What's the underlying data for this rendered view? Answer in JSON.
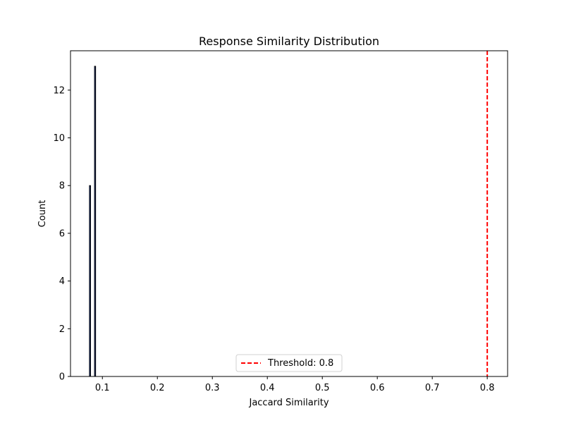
{
  "chart_data": {
    "type": "bar",
    "title": "Response Similarity Distribution",
    "xlabel": "Jaccard Similarity",
    "ylabel": "Count",
    "xlim": [
      0.042,
      0.837
    ],
    "ylim": [
      0,
      13.65
    ],
    "xticks": [
      {
        "value": 0.1,
        "label": "0.1"
      },
      {
        "value": 0.2,
        "label": "0.2"
      },
      {
        "value": 0.3,
        "label": "0.3"
      },
      {
        "value": 0.4,
        "label": "0.4"
      },
      {
        "value": 0.5,
        "label": "0.5"
      },
      {
        "value": 0.6,
        "label": "0.6"
      },
      {
        "value": 0.7,
        "label": "0.7"
      },
      {
        "value": 0.8,
        "label": "0.8"
      }
    ],
    "yticks": [
      {
        "value": 0,
        "label": "0"
      },
      {
        "value": 2,
        "label": "2"
      },
      {
        "value": 4,
        "label": "4"
      },
      {
        "value": 6,
        "label": "6"
      },
      {
        "value": 8,
        "label": "8"
      },
      {
        "value": 10,
        "label": "10"
      },
      {
        "value": 12,
        "label": "12"
      }
    ],
    "bars": [
      {
        "x0": 0.0765,
        "x1": 0.0785,
        "count": 8
      },
      {
        "x0": 0.0857,
        "x1": 0.0877,
        "count": 13
      }
    ],
    "bar_color": "#1f3b8f",
    "bar_edge_color": "#000000",
    "threshold": {
      "value": 0.8,
      "label": "Threshold: 0.8",
      "color": "#ff0000",
      "style": "dashed"
    },
    "legend": {
      "placement": "lower-center",
      "entries": [
        "Threshold: 0.8"
      ]
    },
    "grid": false
  }
}
